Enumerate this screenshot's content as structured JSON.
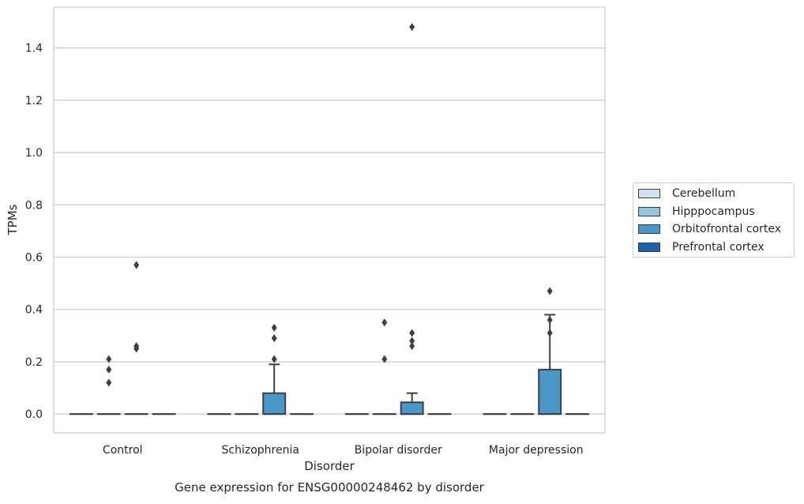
{
  "chart_data": {
    "type": "box",
    "title": "",
    "caption": "Gene expression for ENSG00000248462 by disorder",
    "xlabel": "Disorder",
    "ylabel": "TPMs",
    "ylim": [
      -0.072,
      1.556
    ],
    "yticks": [
      "0.0",
      "0.2",
      "0.4",
      "0.6",
      "0.8",
      "1.0",
      "1.2",
      "1.4"
    ],
    "categories": [
      "Control",
      "Schizophrenia",
      "Bipolar disorder",
      "Major depression"
    ],
    "grid": "horizontal",
    "legend_position": "right",
    "series": [
      {
        "name": "Cerebellum",
        "color": "#d0e1f2",
        "boxes": [
          {
            "q1": 0,
            "median": 0,
            "q3": 0,
            "whisker_low": 0,
            "whisker_high": 0,
            "outliers": []
          },
          {
            "q1": 0,
            "median": 0,
            "q3": 0,
            "whisker_low": 0,
            "whisker_high": 0,
            "outliers": []
          },
          {
            "q1": 0,
            "median": 0,
            "q3": 0,
            "whisker_low": 0,
            "whisker_high": 0,
            "outliers": []
          },
          {
            "q1": 0,
            "median": 0,
            "q3": 0,
            "whisker_low": 0,
            "whisker_high": 0,
            "outliers": []
          }
        ]
      },
      {
        "name": "Hipppocampus",
        "color": "#94c4df",
        "boxes": [
          {
            "q1": 0,
            "median": 0,
            "q3": 0,
            "whisker_low": 0,
            "whisker_high": 0,
            "outliers": [
              0.12,
              0.17,
              0.21
            ]
          },
          {
            "q1": 0,
            "median": 0,
            "q3": 0,
            "whisker_low": 0,
            "whisker_high": 0,
            "outliers": []
          },
          {
            "q1": 0,
            "median": 0,
            "q3": 0,
            "whisker_low": 0,
            "whisker_high": 0,
            "outliers": [
              0.21,
              0.35
            ]
          },
          {
            "q1": 0,
            "median": 0,
            "q3": 0,
            "whisker_low": 0,
            "whisker_high": 0,
            "outliers": []
          }
        ]
      },
      {
        "name": "Orbitofrontal cortex",
        "color": "#4a98c9",
        "boxes": [
          {
            "q1": 0,
            "median": 0,
            "q3": 0,
            "whisker_low": 0,
            "whisker_high": 0,
            "outliers": [
              0.25,
              0.26,
              0.57
            ]
          },
          {
            "q1": 0,
            "median": 0,
            "q3": 0.08,
            "whisker_low": 0,
            "whisker_high": 0.19,
            "outliers": [
              0.21,
              0.29,
              0.33
            ]
          },
          {
            "q1": 0,
            "median": 0,
            "q3": 0.045,
            "whisker_low": 0,
            "whisker_high": 0.08,
            "outliers": [
              0.26,
              0.28,
              0.31,
              1.48
            ]
          },
          {
            "q1": 0,
            "median": 0,
            "q3": 0.17,
            "whisker_low": 0,
            "whisker_high": 0.38,
            "outliers": [
              0.31,
              0.36,
              0.47
            ]
          }
        ]
      },
      {
        "name": "Prefrontal cortex",
        "color": "#1764ab",
        "boxes": [
          {
            "q1": 0,
            "median": 0,
            "q3": 0,
            "whisker_low": 0,
            "whisker_high": 0,
            "outliers": []
          },
          {
            "q1": 0,
            "median": 0,
            "q3": 0,
            "whisker_low": 0,
            "whisker_high": 0,
            "outliers": []
          },
          {
            "q1": 0,
            "median": 0,
            "q3": 0,
            "whisker_low": 0,
            "whisker_high": 0,
            "outliers": []
          },
          {
            "q1": 0,
            "median": 0,
            "q3": 0,
            "whisker_low": 0,
            "whisker_high": 0,
            "outliers": []
          }
        ]
      }
    ]
  }
}
